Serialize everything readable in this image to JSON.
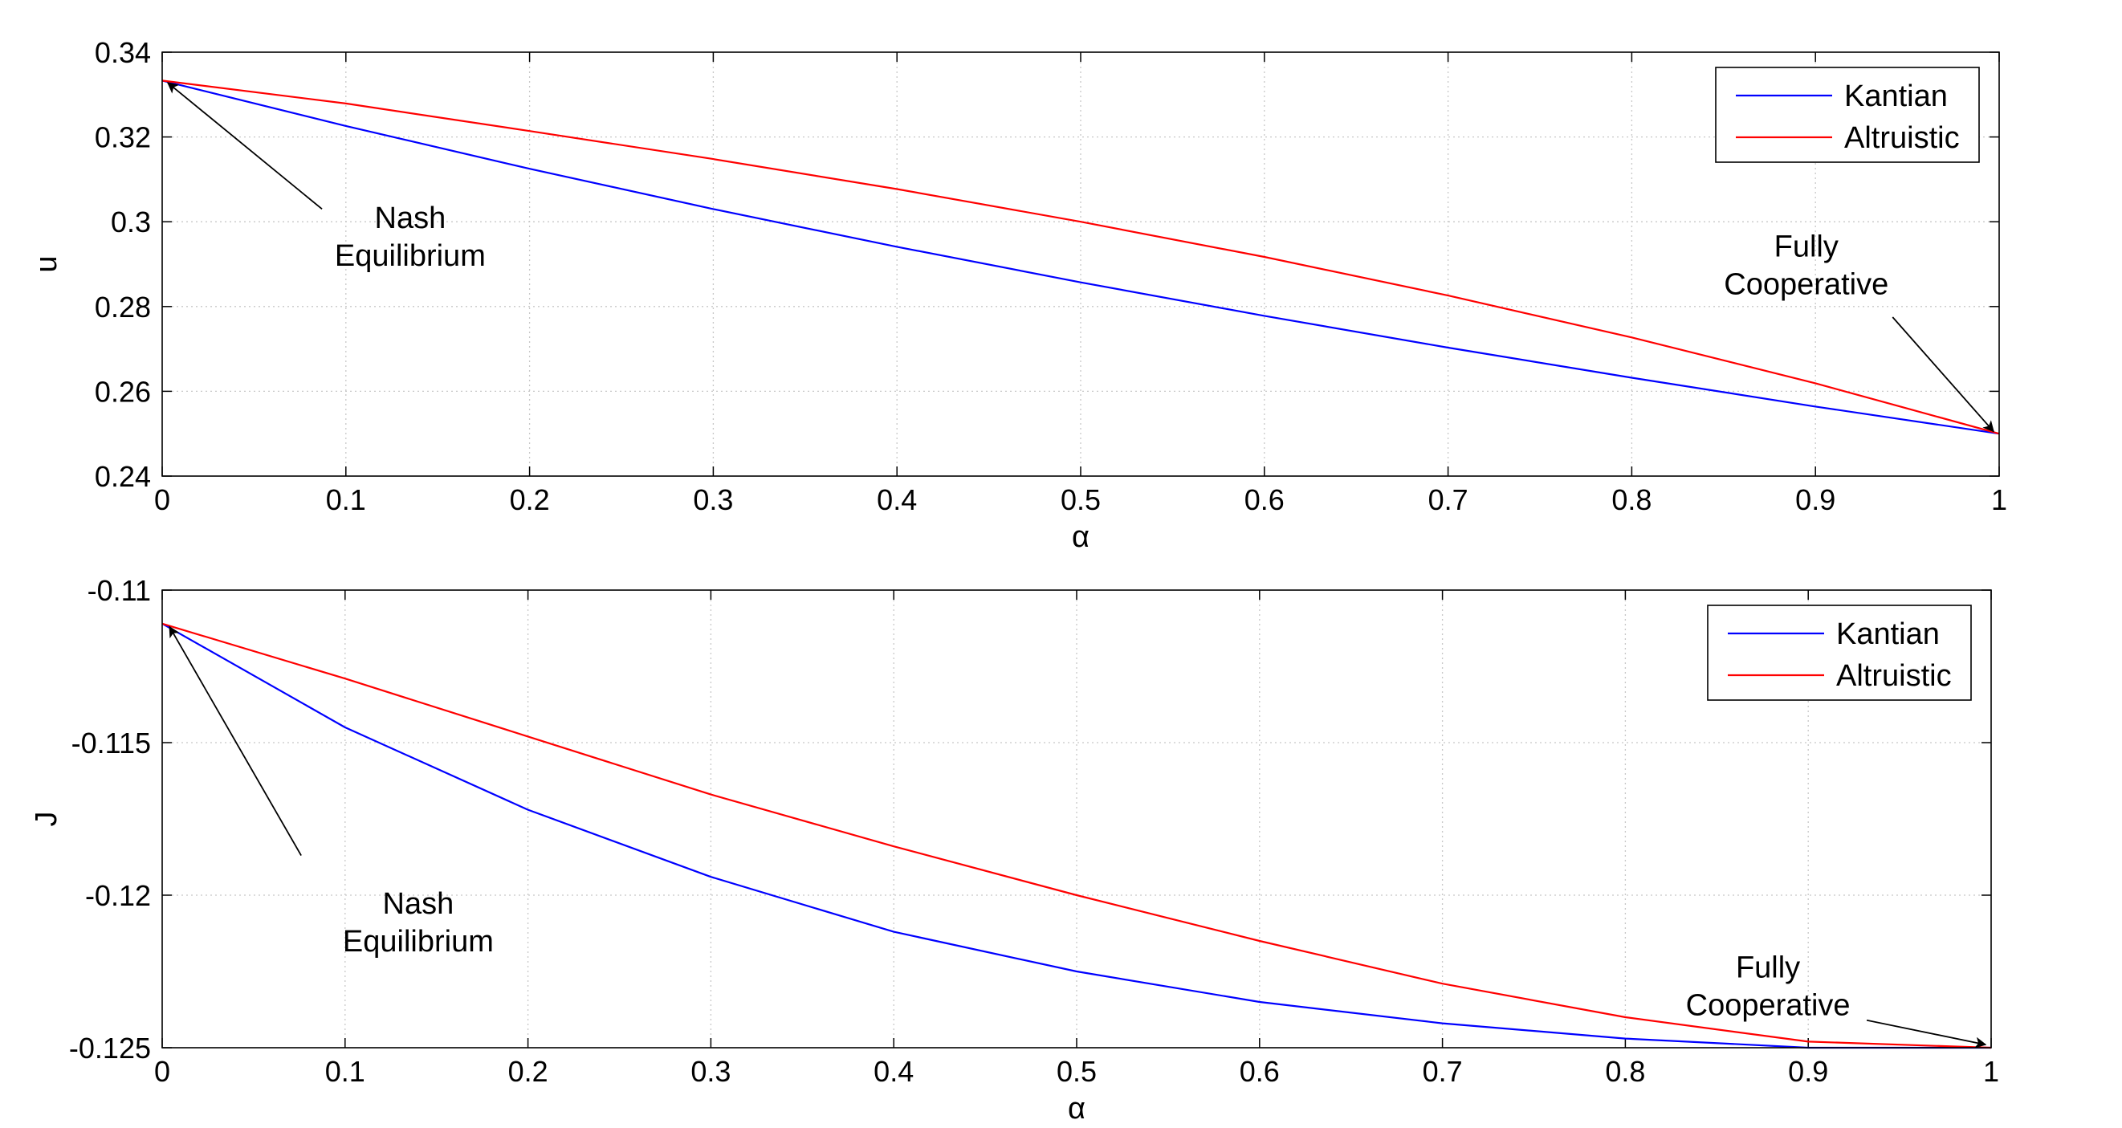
{
  "chart_data": [
    {
      "type": "line",
      "xlabel": "α",
      "ylabel": "u",
      "xlim": [
        0,
        1
      ],
      "ylim": [
        0.24,
        0.34
      ],
      "xticks": [
        0,
        0.1,
        0.2,
        0.3,
        0.4,
        0.5,
        0.6,
        0.7,
        0.8,
        0.9,
        1
      ],
      "xtick_labels": [
        "0",
        "0.1",
        "0.2",
        "0.3",
        "0.4",
        "0.5",
        "0.6",
        "0.7",
        "0.8",
        "0.9",
        "1"
      ],
      "yticks": [
        0.24,
        0.26,
        0.28,
        0.3,
        0.32,
        0.34
      ],
      "ytick_labels": [
        "0.24",
        "0.26",
        "0.28",
        "0.3",
        "0.32",
        "0.34"
      ],
      "grid": true,
      "legend_position": "top-right",
      "x": [
        0,
        0.1,
        0.2,
        0.3,
        0.4,
        0.5,
        0.6,
        0.7,
        0.8,
        0.9,
        1
      ],
      "series": [
        {
          "name": "Kantian",
          "color": "#0000ff",
          "values": [
            0.3333,
            0.3226,
            0.3125,
            0.303,
            0.2941,
            0.2857,
            0.2778,
            0.2703,
            0.2632,
            0.2564,
            0.25
          ]
        },
        {
          "name": "Altruistic",
          "color": "#ff0000",
          "values": [
            0.3333,
            0.3279,
            0.3214,
            0.3148,
            0.3077,
            0.3,
            0.2917,
            0.2826,
            0.2727,
            0.2619,
            0.25
          ]
        }
      ],
      "annotations": [
        {
          "lines": [
            "Nash",
            "Equilibrium"
          ],
          "text_at": [
            0.135,
            0.2985
          ],
          "arrow_from": [
            0.087,
            0.303
          ],
          "arrow_to": [
            0.003,
            0.3328
          ]
        },
        {
          "lines": [
            "Fully",
            "Cooperative"
          ],
          "text_at": [
            0.895,
            0.2918
          ],
          "arrow_from": [
            0.942,
            0.2775
          ],
          "arrow_to": [
            0.997,
            0.2505
          ]
        }
      ]
    },
    {
      "type": "line",
      "xlabel": "α",
      "ylabel": "J",
      "xlim": [
        0,
        1
      ],
      "ylim": [
        -0.125,
        -0.11
      ],
      "xticks": [
        0,
        0.1,
        0.2,
        0.3,
        0.4,
        0.5,
        0.6,
        0.7,
        0.8,
        0.9,
        1
      ],
      "xtick_labels": [
        "0",
        "0.1",
        "0.2",
        "0.3",
        "0.4",
        "0.5",
        "0.6",
        "0.7",
        "0.8",
        "0.9",
        "1"
      ],
      "yticks": [
        -0.125,
        -0.12,
        -0.115,
        -0.11
      ],
      "ytick_labels": [
        "-0.125",
        "-0.12",
        "-0.115",
        "-0.11"
      ],
      "grid": true,
      "legend_position": "top-right",
      "x": [
        0,
        0.1,
        0.2,
        0.3,
        0.4,
        0.5,
        0.6,
        0.7,
        0.8,
        0.9,
        1
      ],
      "series": [
        {
          "name": "Kantian",
          "color": "#0000ff",
          "values": [
            -0.1111,
            -0.1145,
            -0.1172,
            -0.1194,
            -0.1212,
            -0.1225,
            -0.1235,
            -0.1242,
            -0.1247,
            -0.125,
            -0.125
          ]
        },
        {
          "name": "Altruistic",
          "color": "#ff0000",
          "values": [
            -0.1111,
            -0.1129,
            -0.1148,
            -0.1167,
            -0.1184,
            -0.12,
            -0.1215,
            -0.1229,
            -0.124,
            -0.1248,
            -0.125
          ]
        }
      ],
      "annotations": [
        {
          "lines": [
            "Nash",
            "Equilibrium"
          ],
          "text_at": [
            0.14,
            -0.1206
          ],
          "arrow_from": [
            0.076,
            -0.1187
          ],
          "arrow_to": [
            0.004,
            -0.1112
          ]
        },
        {
          "lines": [
            "Fully",
            "Cooperative"
          ],
          "text_at": [
            0.878,
            -0.1227
          ],
          "arrow_from": [
            0.932,
            -0.1241
          ],
          "arrow_to": [
            0.997,
            -0.1249
          ]
        }
      ]
    }
  ]
}
